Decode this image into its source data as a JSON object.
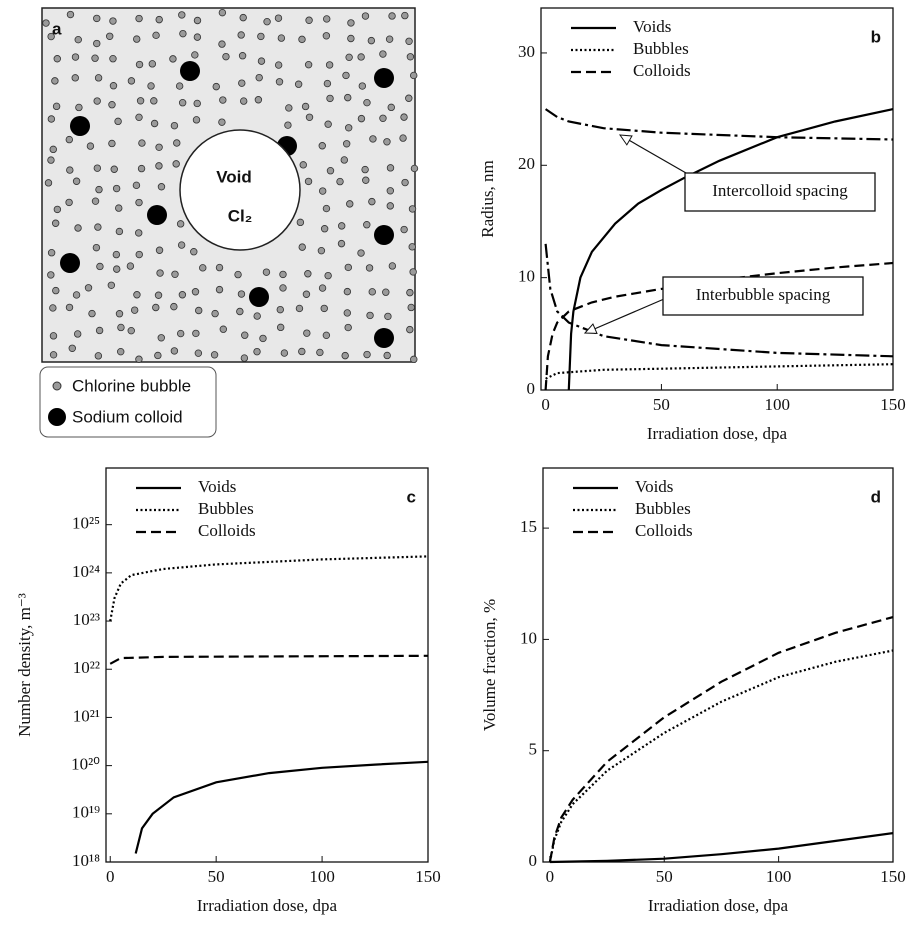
{
  "diagram": {
    "label": "a",
    "void_label": "Void",
    "gas_label": "Cl₂",
    "legend": [
      "Chlorine bubble",
      "Sodium colloid"
    ]
  },
  "chart_data": [
    {
      "type": "line",
      "panel": "b",
      "xlabel": "Irradiation dose, dpa",
      "ylabel": "Radius, nm",
      "xlim": [
        -2,
        150
      ],
      "ylim": [
        0,
        34
      ],
      "xticks": [
        0,
        50,
        100,
        150
      ],
      "yticks": [
        0,
        10,
        20,
        30
      ],
      "legend": "upper left",
      "log_y": false,
      "series": [
        {
          "name": "Voids",
          "color": "#000",
          "style": "solid",
          "x": [
            10,
            11,
            12,
            15,
            20,
            30,
            40,
            50,
            60,
            75,
            100,
            125,
            150
          ],
          "values": [
            0,
            5,
            7,
            10,
            12.3,
            14.8,
            16.6,
            17.8,
            18.9,
            20.4,
            22.5,
            23.9,
            25
          ]
        },
        {
          "name": "Bubbles",
          "color": "#000",
          "style": "dotted",
          "x": [
            0,
            5,
            25,
            50,
            100,
            150
          ],
          "values": [
            1,
            1.5,
            1.8,
            1.9,
            2.1,
            2.3
          ]
        },
        {
          "name": "Colloids",
          "color": "#000",
          "style": "dashed",
          "x": [
            0,
            1,
            3,
            5,
            10,
            20,
            30,
            50,
            75,
            100,
            125,
            150
          ],
          "values": [
            0,
            3,
            5,
            6,
            7,
            7.8,
            8.3,
            9,
            9.8,
            10.4,
            10.9,
            11.3
          ]
        },
        {
          "name": "Intercolloid spacing",
          "color": "#000",
          "style": "dashdot",
          "legend": false,
          "x": [
            0,
            5,
            10,
            25,
            50,
            100,
            150
          ],
          "values": [
            25,
            24.3,
            23.9,
            23.3,
            22.9,
            22.5,
            22.3
          ]
        },
        {
          "name": "Interbubble spacing",
          "color": "#000",
          "style": "dashdot",
          "legend": false,
          "x": [
            0,
            2,
            5,
            10,
            25,
            50,
            100,
            150
          ],
          "values": [
            13,
            9,
            7,
            6,
            4.8,
            4,
            3.3,
            3
          ]
        }
      ]
    },
    {
      "type": "line",
      "panel": "c",
      "xlabel": "Irradiation dose, dpa",
      "ylabel": "Number density, m⁻³",
      "xlim": [
        -2,
        150
      ],
      "ylim": [
        1e+18,
        1.5e+26
      ],
      "log_y": true,
      "xticks": [
        0,
        50,
        100,
        150
      ],
      "yticks": [
        {
          "value": 1e+18,
          "label": "10¹⁸"
        },
        {
          "value": 1e+19,
          "label": "10¹⁹"
        },
        {
          "value": 1e+20,
          "label": "10²⁰"
        },
        {
          "value": 1e+21,
          "label": "10²¹"
        },
        {
          "value": 1e+22,
          "label": "10²²"
        },
        {
          "value": 1e+23,
          "label": "10²³"
        },
        {
          "value": 1e+24,
          "label": "10²⁴"
        },
        {
          "value": 1e+25,
          "label": "10²⁵"
        }
      ],
      "legend": "upper left",
      "series": [
        {
          "name": "Voids",
          "color": "#000",
          "style": "solid",
          "x": [
            12,
            15,
            20,
            30,
            50,
            75,
            100,
            125,
            150
          ],
          "values": [
            1.5e+18,
            5e+18,
            1e+19,
            2.2e+19,
            4.5e+19,
            7e+19,
            9e+19,
            1.05e+20,
            1.2e+20
          ]
        },
        {
          "name": "Bubbles",
          "color": "#000",
          "style": "dotted",
          "x": [
            0,
            2,
            5,
            10,
            25,
            50,
            100,
            150
          ],
          "values": [
            1e+23,
            3e+23,
            6e+23,
            9e+23,
            1.2e+24,
            1.5e+24,
            1.9e+24,
            2.2e+24
          ]
        },
        {
          "name": "Colloids",
          "color": "#000",
          "style": "dashed",
          "x": [
            0,
            5,
            25,
            150
          ],
          "values": [
            1.3e+22,
            1.7e+22,
            1.8e+22,
            1.9e+22
          ]
        }
      ]
    },
    {
      "type": "line",
      "panel": "d",
      "xlabel": "Irradiation dose, dpa",
      "ylabel": "Volume fraction, %",
      "xlim": [
        -3,
        150
      ],
      "ylim": [
        0,
        17.7
      ],
      "log_y": false,
      "xticks": [
        0,
        50,
        100,
        150
      ],
      "yticks": [
        0,
        5,
        10,
        15
      ],
      "legend": "upper left",
      "series": [
        {
          "name": "Voids",
          "color": "#000",
          "style": "solid",
          "x": [
            0,
            25,
            50,
            75,
            100,
            125,
            150
          ],
          "values": [
            0,
            0.05,
            0.15,
            0.35,
            0.6,
            0.95,
            1.3
          ]
        },
        {
          "name": "Bubbles",
          "color": "#000",
          "style": "dotted",
          "x": [
            0,
            2,
            5,
            10,
            25,
            50,
            75,
            100,
            125,
            150
          ],
          "values": [
            0,
            1,
            1.8,
            2.6,
            4.1,
            5.8,
            7.2,
            8.3,
            9,
            9.5
          ]
        },
        {
          "name": "Colloids",
          "color": "#000",
          "style": "dashed",
          "x": [
            0,
            2,
            5,
            10,
            25,
            50,
            75,
            100,
            125,
            150
          ],
          "values": [
            0,
            1.1,
            2,
            2.8,
            4.5,
            6.5,
            8.1,
            9.4,
            10.3,
            11
          ]
        }
      ]
    }
  ]
}
